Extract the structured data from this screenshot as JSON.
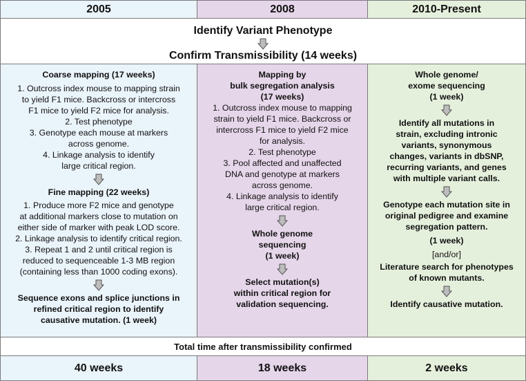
{
  "headers": [
    "2005",
    "2008",
    "2010-Present"
  ],
  "top": {
    "line1": "Identify Variant Phenotype",
    "line2": "Confirm Transmissibility (14 weeks)"
  },
  "col1": {
    "title": "Coarse mapping (17 weeks)",
    "steps": [
      "1. Outcross index mouse to mapping strain",
      "to yield F1 mice.  Backcross or intercross",
      "F1 mice to yield F2 mice for analysis.",
      "2. Test phenotype",
      "3. Genotype each mouse at markers",
      "across genome.",
      "4. Linkage analysis to identify",
      "large critical region."
    ],
    "fine_title": "Fine mapping (22 weeks)",
    "fine_steps": [
      "1. Produce more F2 mice and genotype",
      "at additional markers close to mutation on",
      "either side of marker with peak LOD score.",
      "2. Linkage analysis to identify critical region.",
      "3. Repeat 1 and 2 until critical region is",
      "reduced to sequenceable 1-3 MB region",
      "(containing less than 1000 coding exons)."
    ],
    "final": [
      "Sequence exons and splice junctions in",
      "refined critical region to identify",
      "causative mutation. (1 week)"
    ]
  },
  "col2": {
    "title": [
      "Mapping by",
      "bulk segregation analysis",
      "(17 weeks)"
    ],
    "steps": [
      "1. Outcross index mouse to mapping",
      "strain to yield F1 mice.  Backcross or",
      "intercross F1 mice to yield F2 mice",
      "for analysis.",
      "2. Test phenotype",
      "3. Pool affected and unaffected",
      "DNA and genotype at markers",
      "across genome.",
      "4. Linkage analysis to identify",
      "large critical region."
    ],
    "wgs": [
      "Whole genome",
      "sequencing",
      "(1 week)"
    ],
    "select": [
      "Select mutation(s)",
      "within critical region for",
      "validation sequencing."
    ]
  },
  "col3": {
    "title": [
      "Whole genome/",
      "exome sequencing",
      "(1 week)"
    ],
    "identify": [
      "Identify all mutations in",
      "strain, excluding intronic",
      "variants, synonymous",
      "changes, variants in dbSNP,",
      "recurring variants, and genes",
      "with multiple variant calls."
    ],
    "genotype": [
      "Genotype each mutation site in",
      "original pedigree and examine",
      "segregation pattern."
    ],
    "genotype_time": "(1 week)",
    "andor": "[and/or]",
    "literature": [
      "Literature search for phenotypes",
      "of known mutants."
    ],
    "final": "Identify causative mutation."
  },
  "total_label": "Total time after transmissibility confirmed",
  "totals": [
    "40 weeks",
    "18 weeks",
    "2 weeks"
  ]
}
